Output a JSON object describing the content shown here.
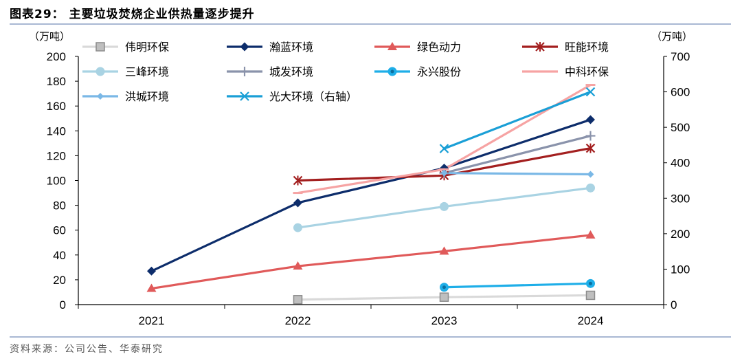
{
  "header": {
    "title": "图表29：  主要垃圾焚烧企业供热量逐步提升"
  },
  "footer": {
    "source": "资料来源：公司公告、华泰研究"
  },
  "chart_data": {
    "type": "line",
    "title": "图表29：  主要垃圾焚烧企业供热量逐步提升",
    "categories": [
      "2021",
      "2022",
      "2023",
      "2024"
    ],
    "ylabel_left": "（万吨）",
    "ylabel_right": "（万吨）",
    "ylim_left": [
      0,
      200
    ],
    "ylim_right": [
      0,
      700
    ],
    "yticks_left": [
      "0",
      "20",
      "40",
      "60",
      "80",
      "100",
      "120",
      "140",
      "160",
      "180",
      "200"
    ],
    "yticks_right": [
      "0",
      "100",
      "200",
      "300",
      "400",
      "500",
      "600",
      "700"
    ],
    "legend_position": "top",
    "series": [
      {
        "name": "伟明环保",
        "axis": "left",
        "color": "#d9d9d9",
        "marker": "square-gray",
        "values": [
          null,
          4,
          6,
          7.5
        ]
      },
      {
        "name": "瀚蓝环境",
        "axis": "left",
        "color": "#0d2d6b",
        "marker": "diamond",
        "values": [
          27,
          82,
          110,
          149
        ]
      },
      {
        "name": "绿色动力",
        "axis": "left",
        "color": "#e05a5a",
        "marker": "triangle",
        "values": [
          13,
          31,
          43,
          56
        ]
      },
      {
        "name": "旺能环境",
        "axis": "left",
        "color": "#a31f1f",
        "marker": "star",
        "values": [
          null,
          100,
          104,
          126
        ]
      },
      {
        "name": "三峰环境",
        "axis": "left",
        "color": "#a9d3e3",
        "marker": "circle",
        "values": [
          null,
          62,
          79,
          94
        ]
      },
      {
        "name": "城发环境",
        "axis": "left",
        "color": "#8a93ab",
        "marker": "plus",
        "values": [
          null,
          null,
          106,
          136
        ]
      },
      {
        "name": "永兴股份",
        "axis": "left",
        "color": "#1eaee8",
        "marker": "circle-dot",
        "values": [
          null,
          null,
          14,
          17
        ]
      },
      {
        "name": "中科环保",
        "axis": "left",
        "color": "#f6a3a3",
        "marker": "dash",
        "values": [
          null,
          90,
          109,
          177
        ]
      },
      {
        "name": "洪城环境",
        "axis": "left",
        "color": "#7ab8e6",
        "marker": "diamond-small",
        "values": [
          null,
          null,
          106,
          105
        ]
      },
      {
        "name": "光大环境（右轴）",
        "axis": "right",
        "color": "#1a9fd6",
        "marker": "x",
        "values": [
          null,
          null,
          440,
          600
        ]
      }
    ]
  }
}
